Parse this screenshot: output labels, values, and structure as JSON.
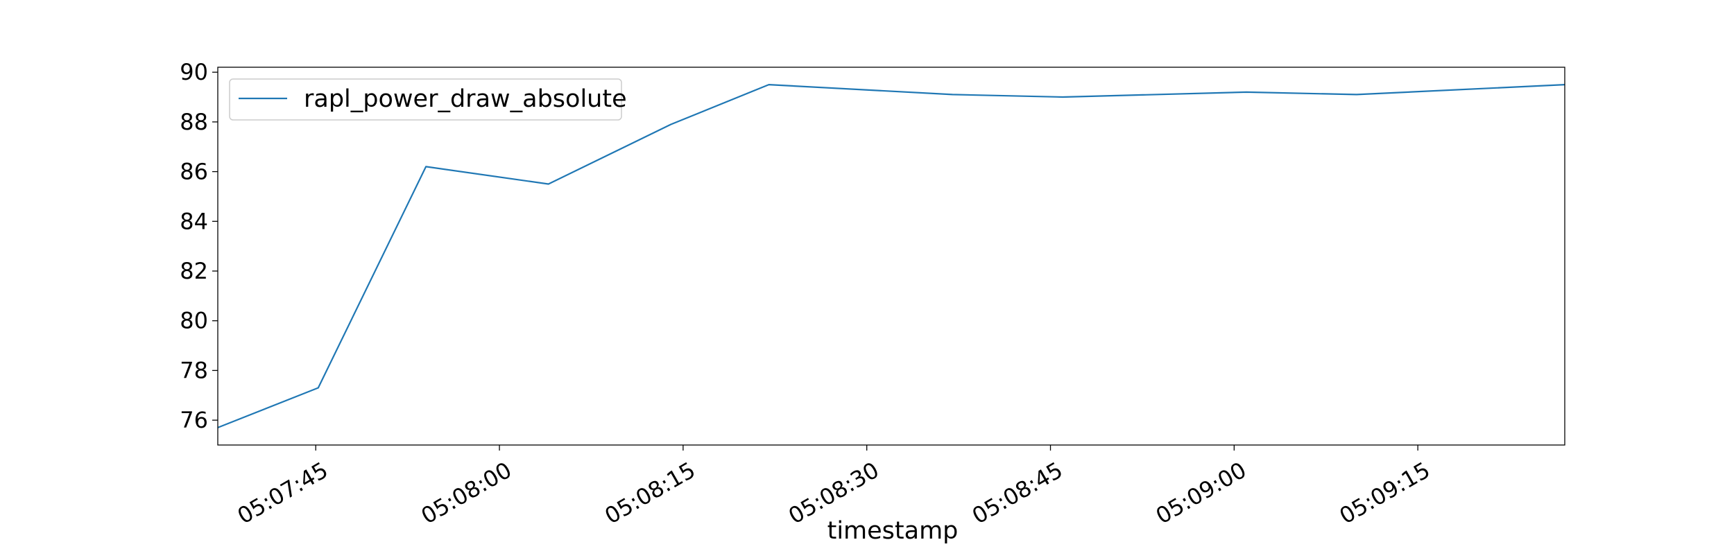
{
  "chart_data": {
    "type": "line",
    "title": "",
    "xlabel": "timestamp",
    "ylabel": "",
    "x_unit": "time (HH:MM:SS)",
    "xlim": [
      "05:07:37",
      "05:09:27"
    ],
    "ylim": [
      75.0,
      90.2
    ],
    "x_ticks": [
      "05:07:45",
      "05:08:00",
      "05:08:15",
      "05:08:30",
      "05:08:45",
      "05:09:00",
      "05:09:15"
    ],
    "y_ticks": [
      76,
      78,
      80,
      82,
      84,
      86,
      88,
      90
    ],
    "grid": false,
    "legend": {
      "position": "top-left",
      "entries": [
        "rapl_power_draw_absolute"
      ]
    },
    "series": [
      {
        "name": "rapl_power_draw_absolute",
        "color": "#1f77b4",
        "x": [
          "05:07:37",
          "05:07:45.2",
          "05:07:54",
          "05:08:04",
          "05:08:14",
          "05:08:22",
          "05:08:37",
          "05:08:46",
          "05:09:01",
          "05:09:10",
          "05:09:27"
        ],
        "y": [
          75.7,
          77.3,
          86.2,
          85.5,
          87.9,
          89.5,
          89.1,
          89.0,
          89.2,
          89.1,
          89.5
        ]
      }
    ]
  }
}
